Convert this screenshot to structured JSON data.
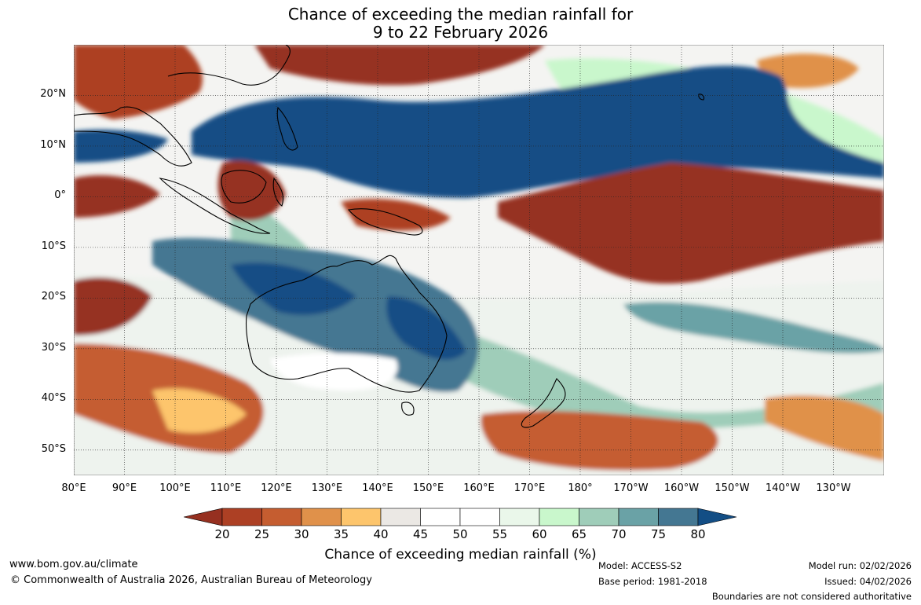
{
  "title": {
    "line1": "Chance of exceeding the median rainfall for",
    "line2": "9 to 22 February 2026"
  },
  "map": {
    "lon_min": 80,
    "lon_max": 240,
    "lat_min": -55,
    "lat_max": 30,
    "lat_ticks": [
      {
        "lat": 20,
        "label": "20°N"
      },
      {
        "lat": 10,
        "label": "10°N"
      },
      {
        "lat": 0,
        "label": "0°"
      },
      {
        "lat": -10,
        "label": "10°S"
      },
      {
        "lat": -20,
        "label": "20°S"
      },
      {
        "lat": -30,
        "label": "30°S"
      },
      {
        "lat": -40,
        "label": "40°S"
      },
      {
        "lat": -50,
        "label": "50°S"
      }
    ],
    "lon_ticks": [
      {
        "lon": 80,
        "label": "80°E"
      },
      {
        "lon": 90,
        "label": "90°E"
      },
      {
        "lon": 100,
        "label": "100°E"
      },
      {
        "lon": 110,
        "label": "110°E"
      },
      {
        "lon": 120,
        "label": "120°E"
      },
      {
        "lon": 130,
        "label": "130°E"
      },
      {
        "lon": 140,
        "label": "140°E"
      },
      {
        "lon": 150,
        "label": "150°E"
      },
      {
        "lon": 160,
        "label": "160°E"
      },
      {
        "lon": 170,
        "label": "170°E"
      },
      {
        "lon": 180,
        "label": "180°"
      },
      {
        "lon": 190,
        "label": "170°W"
      },
      {
        "lon": 200,
        "label": "160°W"
      },
      {
        "lon": 210,
        "label": "150°W"
      },
      {
        "lon": 220,
        "label": "140°W"
      },
      {
        "lon": 230,
        "label": "130°W"
      }
    ]
  },
  "colorbar": {
    "label": "Chance of exceeding median rainfall (%)",
    "ticks": [
      "20",
      "25",
      "30",
      "35",
      "40",
      "45",
      "50",
      "55",
      "60",
      "65",
      "70",
      "75",
      "80"
    ],
    "colors": [
      "#ad4024",
      "#c55d30",
      "#e0914a",
      "#fdc56c",
      "#ebe8e4",
      "#ffffff",
      "#ffffff",
      "#eaf7ea",
      "#c9f7cc",
      "#9fcdb9",
      "#6aa2a6",
      "#447792"
    ],
    "low_color": "#963020",
    "high_color": "#134e85"
  },
  "footer": {
    "website": "www.bom.gov.au/climate",
    "copyright": "© Commonwealth of Australia 2026, Australian Bureau of Meteorology",
    "model": "Model: ACCESS-S2",
    "base_period": "Base period: 1981-2018",
    "model_run": "Model run: 02/02/2026",
    "issued": "Issued: 04/02/2026",
    "disclaimer": "Boundaries are not considered authoritative"
  }
}
